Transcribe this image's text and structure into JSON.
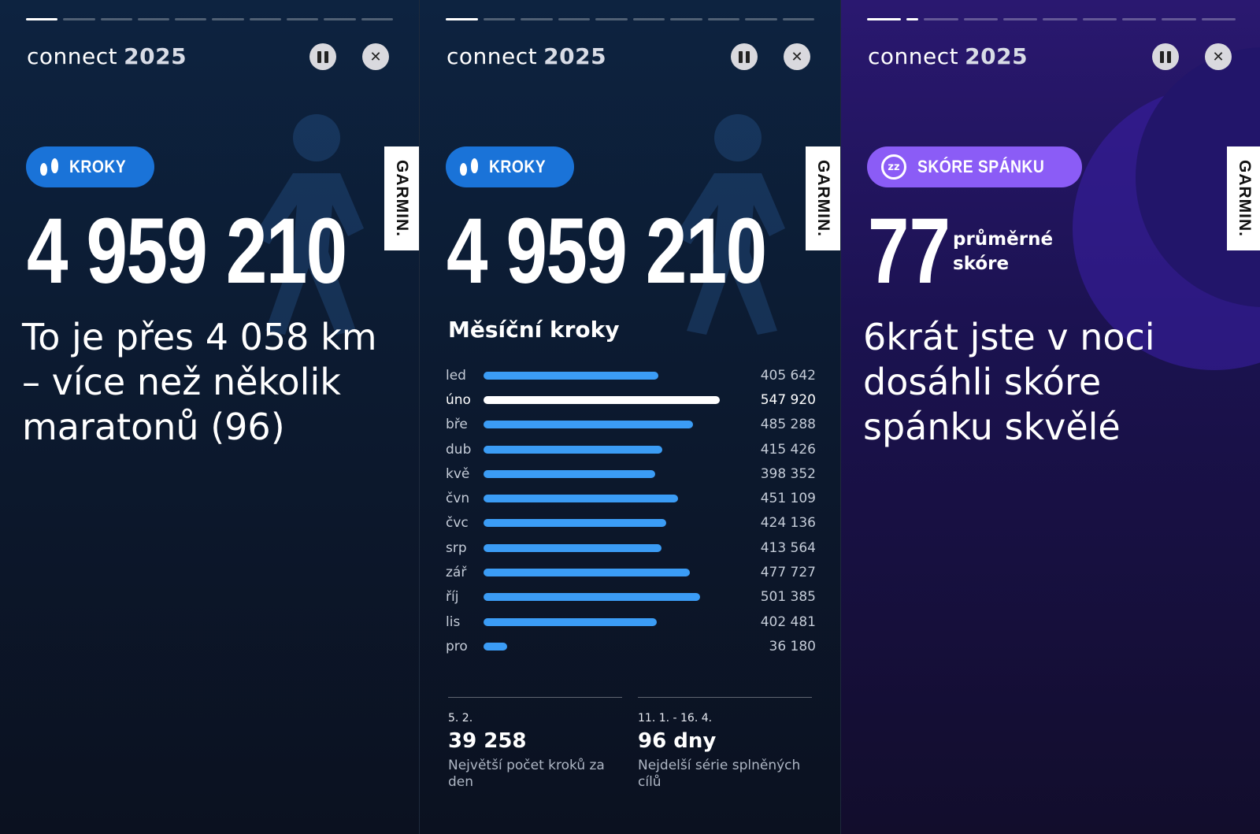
{
  "brand": {
    "app": "connect",
    "year": "2025",
    "garmin": "GARMIN."
  },
  "panel1": {
    "progress_active": 1,
    "badge": "KROKY",
    "total": "4 959 210",
    "description": "To je přes 4 058 km – více než několik maratonů (96)"
  },
  "panel2": {
    "progress_active": 1,
    "badge": "KROKY",
    "total": "4 959 210",
    "section_title": "Měsíční kroky",
    "chart_data": {
      "type": "bar",
      "orientation": "horizontal",
      "categories": [
        "led",
        "úno",
        "bře",
        "dub",
        "kvě",
        "čvn",
        "čvc",
        "srp",
        "zář",
        "říj",
        "lis",
        "pro"
      ],
      "values": [
        405642,
        547920,
        485288,
        415426,
        398352,
        451109,
        424136,
        413564,
        477727,
        501385,
        402481,
        36180
      ],
      "labels": [
        "405 642",
        "547 920",
        "485 288",
        "415 426",
        "398 352",
        "451 109",
        "424 136",
        "413 564",
        "477 727",
        "501 385",
        "402 481",
        "36 180"
      ],
      "highlight": "úno",
      "colors": {
        "bar": "#3b9cf5",
        "highlight": "#ffffff"
      }
    },
    "stats": [
      {
        "date": "5. 2.",
        "value": "39 258",
        "label": "Největší počet kroků za den"
      },
      {
        "date": "11. 1. - 16. 4.",
        "value": "96 dny",
        "label": "Nejdelší série splněných cílů"
      }
    ]
  },
  "panel3": {
    "progress_active": 2,
    "badge": "SKÓRE SPÁNKU",
    "score": "77",
    "score_label": "průměrné skóre",
    "description": "6krát jste v noci dosáhli skóre spánku skvělé"
  },
  "controls": {
    "pause_icon": "pause-icon",
    "close_icon": "close-icon",
    "close_glyph": "✕"
  },
  "colors": {
    "steps_accent": "#1a73d8",
    "sleep_accent": "#8b5cf6"
  }
}
